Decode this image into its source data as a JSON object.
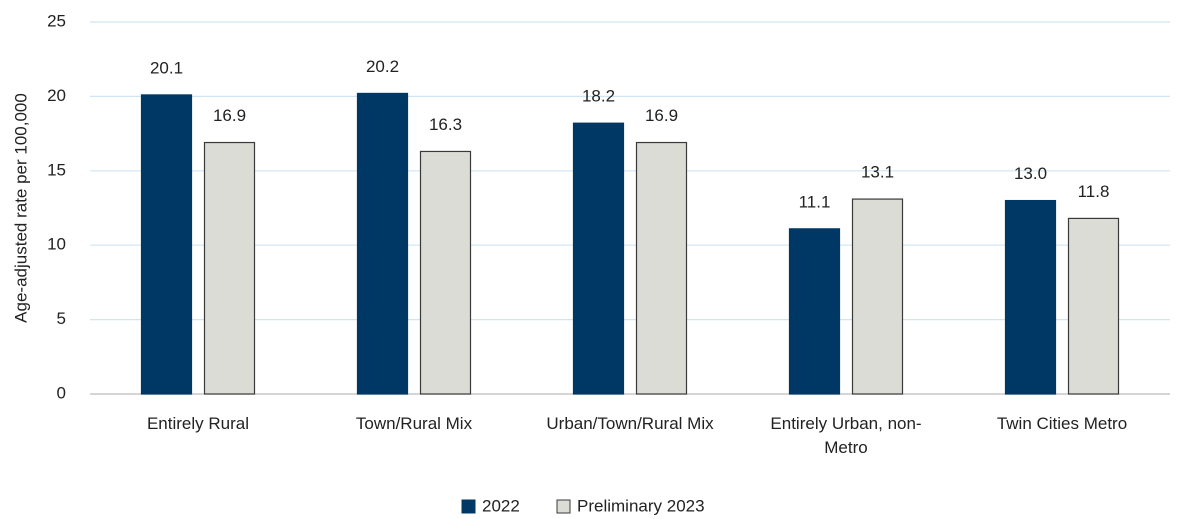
{
  "chart_data": {
    "type": "bar",
    "y_label": "Age-adjusted rate per 100,000",
    "categories": [
      "Entirely Rural",
      "Town/Rural Mix",
      "Urban/Town/Rural Mix",
      "Entirely Urban, non-Metro",
      "Twin Cities Metro"
    ],
    "series": [
      {
        "name": "2022",
        "color": "#003865",
        "values": [
          20.1,
          20.2,
          18.2,
          11.1,
          13.0
        ],
        "value_labels": [
          "20.1",
          "20.2",
          "18.2",
          "11.1",
          "13.0"
        ]
      },
      {
        "name": "Preliminary 2023",
        "color": "#dcdcd7",
        "values": [
          16.9,
          16.3,
          16.9,
          13.1,
          11.8
        ],
        "value_labels": [
          "16.9",
          "16.3",
          "16.9",
          "13.1",
          "11.8"
        ]
      }
    ],
    "ylim": [
      0,
      25
    ],
    "yticks": [
      0,
      5,
      10,
      15,
      20,
      25
    ],
    "grid": true,
    "legend": "bottom"
  }
}
